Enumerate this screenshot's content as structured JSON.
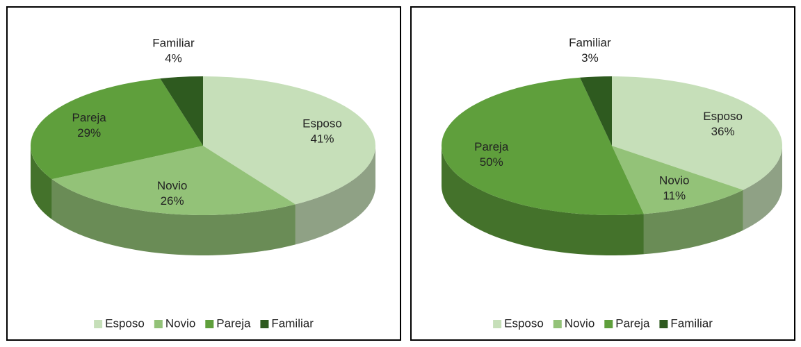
{
  "chart_data": [
    {
      "type": "pie",
      "categories": [
        "Esposo",
        "Novio",
        "Pareja",
        "Familiar"
      ],
      "values": [
        41,
        26,
        29,
        4
      ],
      "value_labels": [
        "41%",
        "26%",
        "29%",
        "4%"
      ],
      "colors": [
        "#c6dfb9",
        "#93c278",
        "#5f9f3c",
        "#2e5a1f"
      ],
      "legend": "bottom"
    },
    {
      "type": "pie",
      "categories": [
        "Esposo",
        "Novio",
        "Pareja",
        "Familiar"
      ],
      "values": [
        36,
        11,
        50,
        3
      ],
      "value_labels": [
        "36%",
        "11%",
        "50%",
        "3%"
      ],
      "colors": [
        "#c6dfb9",
        "#93c278",
        "#5f9f3c",
        "#2e5a1f"
      ],
      "legend": "bottom"
    }
  ]
}
